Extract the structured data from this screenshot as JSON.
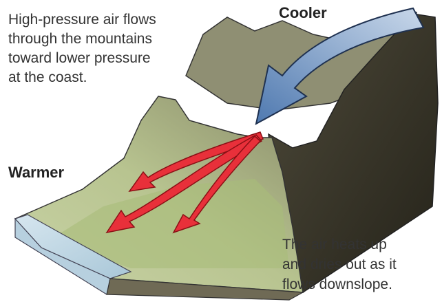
{
  "intro": {
    "lines": [
      "High-pressure air flows",
      "through the mountains",
      "toward lower pressure",
      "at the coast."
    ]
  },
  "labels": {
    "cooler": "Cooler",
    "warmer": "Warmer"
  },
  "outro": {
    "lines": [
      "The air heats up",
      "and dries out as it",
      "flows downslope."
    ]
  }
}
